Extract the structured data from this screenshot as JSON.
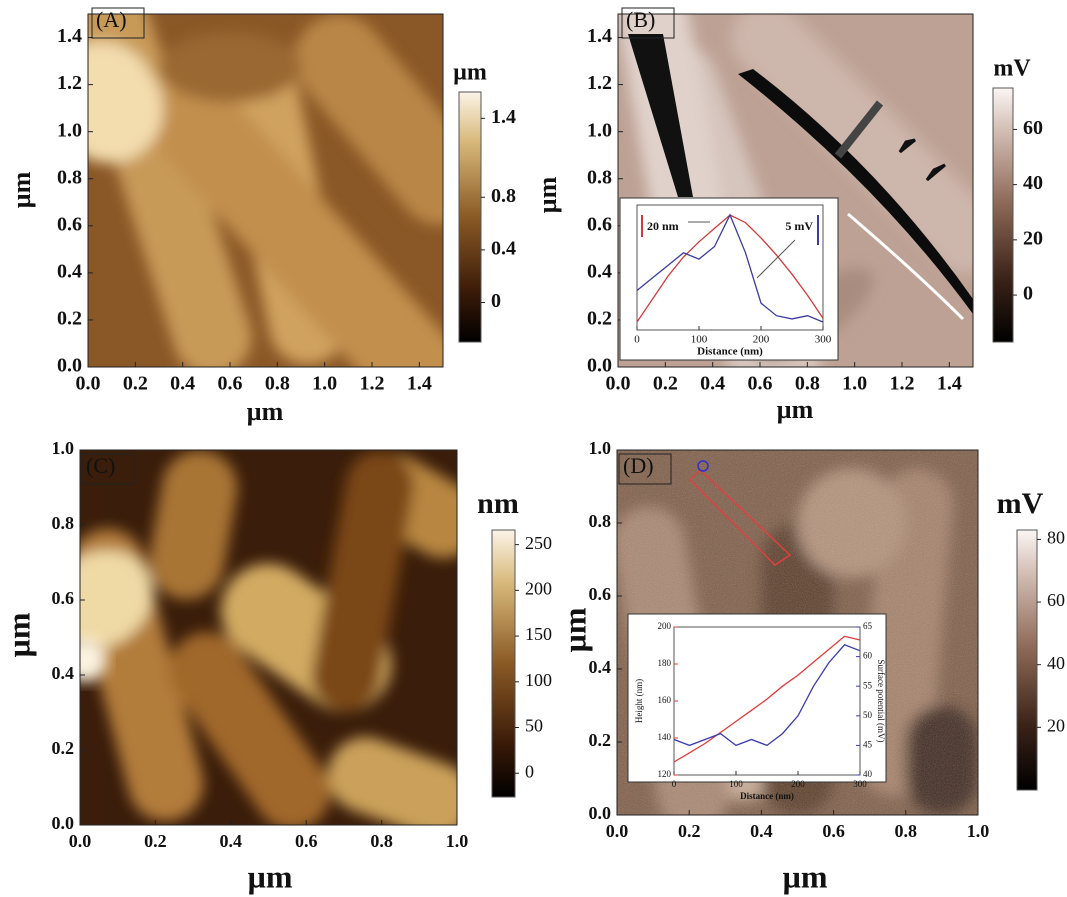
{
  "chart_data": [
    {
      "type": "image",
      "label": "(A)",
      "xlabel": "µm",
      "ylabel": "µm",
      "xlim": [
        0,
        1.5
      ],
      "ylim": [
        0,
        1.5
      ],
      "xticks": [
        {
          "value": 0,
          "label": "0.0"
        },
        0.2,
        0.4,
        0.6,
        0.8,
        {
          "value": 1,
          "label": "1.0"
        },
        1.2,
        1.4
      ],
      "yticks": [
        {
          "value": 0,
          "label": "0.0"
        },
        0.2,
        0.4,
        0.6,
        0.8,
        {
          "value": 1,
          "label": "1.0"
        },
        1.2,
        1.4
      ],
      "colorbar": {
        "label": "µm",
        "lim": [
          -0.3,
          1.6
        ],
        "ticks": [
          0,
          0.4,
          0.8,
          1.4
        ]
      }
    },
    {
      "type": "image",
      "label": "(B)",
      "xlabel": "µm",
      "ylabel": "µm",
      "xlim": [
        0,
        1.5
      ],
      "ylim": [
        0,
        1.5
      ],
      "xticks": [
        {
          "value": 0,
          "label": "0.0"
        },
        0.2,
        0.4,
        0.6,
        0.8,
        {
          "value": 1,
          "label": "1.0"
        },
        1.2,
        1.4
      ],
      "yticks": [
        {
          "value": 0,
          "label": "0.0"
        },
        0.2,
        0.4,
        0.6,
        0.8,
        {
          "value": 1,
          "label": "1.0"
        },
        1.2,
        1.4
      ],
      "colorbar": {
        "label": "mV",
        "lim": [
          -17,
          75
        ],
        "ticks": [
          0,
          20,
          40,
          60
        ]
      },
      "inset": {
        "type": "line",
        "xlabel": "Distance (nm)",
        "xlim": [
          0,
          300
        ],
        "xticks": [
          0,
          100,
          200,
          300
        ],
        "x": [
          0,
          25,
          50,
          75,
          100,
          125,
          150,
          175,
          200,
          225,
          250,
          275,
          300
        ],
        "series": [
          {
            "color": "#d03a3a",
            "scale_label": "20 nm",
            "values": [
              0,
              12,
              24,
              34,
              42,
              49,
              56,
              52,
              44,
              35,
              25,
              14,
              2
            ]
          },
          {
            "color": "#3a3aa0",
            "scale_label": "5 mV",
            "values": [
              5,
              7,
              9,
              11,
              10,
              12,
              17,
              11,
              3,
              1,
              0.5,
              1,
              0
            ]
          }
        ]
      }
    },
    {
      "type": "image",
      "label": "(C)",
      "xlabel": "µm",
      "ylabel": "µm",
      "xlim": [
        0,
        1
      ],
      "ylim": [
        0,
        1
      ],
      "xticks": [
        {
          "value": 0,
          "label": "0.0"
        },
        0.2,
        0.4,
        0.6,
        0.8,
        {
          "value": 1,
          "label": "1.0"
        }
      ],
      "yticks": [
        {
          "value": 0,
          "label": "0.0"
        },
        0.2,
        0.4,
        0.6,
        0.8,
        {
          "value": 1,
          "label": "1.0"
        }
      ],
      "colorbar": {
        "label": "nm",
        "lim": [
          -26,
          266
        ],
        "ticks": [
          0,
          50,
          100,
          150,
          200,
          250
        ]
      }
    },
    {
      "type": "image",
      "label": "(D)",
      "xlabel": "µm",
      "ylabel": "µm",
      "xlim": [
        0,
        1
      ],
      "ylim": [
        0,
        1
      ],
      "xticks": [
        {
          "value": 0,
          "label": "0.0"
        },
        0.2,
        0.4,
        0.6,
        0.8,
        {
          "value": 1,
          "label": "1.0"
        }
      ],
      "yticks": [
        {
          "value": 0,
          "label": "0.0"
        },
        0.2,
        0.4,
        0.6,
        0.8,
        {
          "value": 1,
          "label": "1.0"
        }
      ],
      "colorbar": {
        "label": "mV",
        "lim": [
          0,
          83
        ],
        "ticks": [
          20,
          40,
          60,
          80
        ]
      },
      "inset": {
        "type": "line",
        "xlabel": "Distance (nm)",
        "ylabel": "Height (nm)",
        "y2label": "Surface potential (mV)",
        "xlim": [
          0,
          300
        ],
        "xticks": [
          0,
          100,
          200,
          300
        ],
        "ylim": [
          120,
          200
        ],
        "yticks": [
          120,
          140,
          160,
          180,
          200
        ],
        "y2lim": [
          40,
          65
        ],
        "y2ticks": [
          40,
          45,
          50,
          55,
          60,
          65
        ],
        "x": [
          0,
          25,
          50,
          75,
          100,
          125,
          150,
          175,
          200,
          225,
          250,
          275,
          300
        ],
        "series": [
          {
            "color": "#e03a3a",
            "values": [
              127,
              132,
              137,
              143,
              149,
              155,
              161,
              168,
              174,
              181,
              188,
              195,
              193
            ]
          },
          {
            "color": "#3a3ab0",
            "axis": "y2",
            "values": [
              46,
              45,
              46,
              47,
              45,
              46,
              45,
              47,
              50,
              55,
              59,
              62,
              61
            ]
          }
        ]
      }
    }
  ]
}
